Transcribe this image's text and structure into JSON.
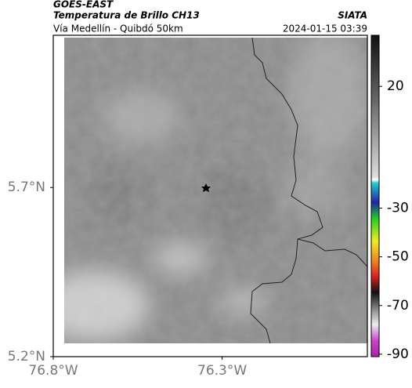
{
  "header": {
    "title": "GOES-EAST",
    "subtitle": "Temperatura de Brillo CH13",
    "source": "SIATA",
    "location": "Vía Medellín - Quibdó 50km",
    "datetime": "2024-01-15 03:39"
  },
  "map": {
    "xlim": [
      -76.8,
      -75.87
    ],
    "ylim": [
      5.2,
      6.15
    ],
    "xticks": [
      {
        "value": -76.8,
        "label": "76.8°W"
      },
      {
        "value": -76.3,
        "label": "76.3°W"
      }
    ],
    "yticks": [
      {
        "value": 5.7,
        "label": "5.7°N"
      },
      {
        "value": 5.2,
        "label": "5.2°N"
      }
    ]
  },
  "colorbar": {
    "lim": [
      41,
      -91
    ],
    "ticks": [
      20,
      -30,
      -50,
      -70,
      -90
    ]
  }
}
